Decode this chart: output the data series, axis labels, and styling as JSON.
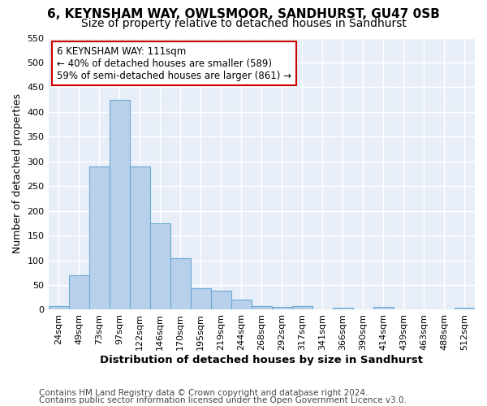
{
  "title1": "6, KEYNSHAM WAY, OWLSMOOR, SANDHURST, GU47 0SB",
  "title2": "Size of property relative to detached houses in Sandhurst",
  "xlabel": "Distribution of detached houses by size in Sandhurst",
  "ylabel": "Number of detached properties",
  "footer1": "Contains HM Land Registry data © Crown copyright and database right 2024.",
  "footer2": "Contains public sector information licensed under the Open Government Licence v3.0.",
  "annotation_line1": "6 KEYNSHAM WAY: 111sqm",
  "annotation_line2": "← 40% of detached houses are smaller (589)",
  "annotation_line3": "59% of semi-detached houses are larger (861) →",
  "bar_labels": [
    "24sqm",
    "49sqm",
    "73sqm",
    "97sqm",
    "122sqm",
    "146sqm",
    "170sqm",
    "195sqm",
    "219sqm",
    "244sqm",
    "268sqm",
    "292sqm",
    "317sqm",
    "341sqm",
    "366sqm",
    "390sqm",
    "414sqm",
    "439sqm",
    "463sqm",
    "488sqm",
    "512sqm"
  ],
  "bar_values": [
    8,
    70,
    290,
    425,
    290,
    175,
    105,
    43,
    38,
    20,
    8,
    5,
    8,
    0,
    4,
    0,
    5,
    0,
    0,
    0,
    4
  ],
  "bar_color": "#b8d0ea",
  "bar_edge_color": "#6aaad4",
  "bg_color": "#ffffff",
  "plot_bg_color": "#e8eef8",
  "grid_color": "#ffffff",
  "ylim": [
    0,
    550
  ],
  "yticks": [
    0,
    50,
    100,
    150,
    200,
    250,
    300,
    350,
    400,
    450,
    500,
    550
  ],
  "annotation_box_color": "#ffffff",
  "annotation_box_edge": "#cc0000",
  "title1_fontsize": 11,
  "title2_fontsize": 10,
  "xlabel_fontsize": 9.5,
  "ylabel_fontsize": 9,
  "tick_fontsize": 8,
  "footer_fontsize": 7.5,
  "ann_fontsize": 8.5
}
